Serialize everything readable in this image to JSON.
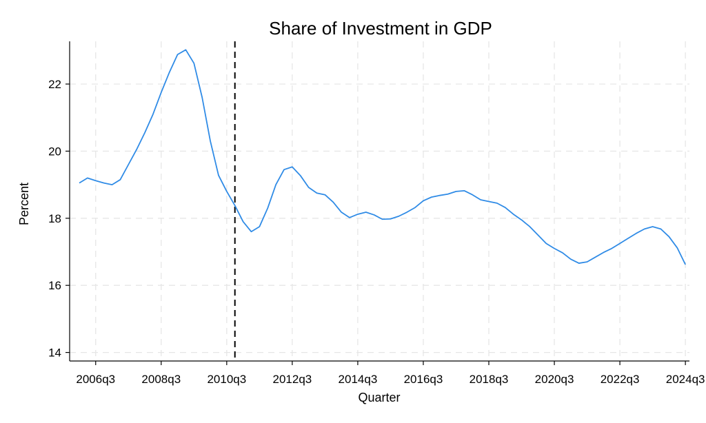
{
  "chart_data": {
    "type": "line",
    "title": "Share of Investment in GDP",
    "xlabel": "Quarter",
    "ylabel": "Percent",
    "x_start": "2006q1",
    "x_end": "2024q4",
    "ylim": [
      13.8,
      23.3
    ],
    "yticks": [
      14,
      16,
      18,
      20,
      22
    ],
    "xticks": [
      "2006q3",
      "2008q3",
      "2010q3",
      "2012q3",
      "2014q3",
      "2016q3",
      "2018q3",
      "2020q3",
      "2022q3",
      "2024q3"
    ],
    "grid": true,
    "vline": "2010q4",
    "line_color": "#2f8be6",
    "vline_color": "#000000",
    "series": [
      {
        "x": [
          "2006q1",
          "2006q2",
          "2006q3",
          "2006q4",
          "2007q1",
          "2007q2",
          "2007q3",
          "2007q4",
          "2008q1",
          "2008q2",
          "2008q3",
          "2008q4",
          "2009q1",
          "2009q2",
          "2009q3",
          "2009q4",
          "2010q1",
          "2010q2",
          "2010q3",
          "2010q4",
          "2011q1",
          "2011q2",
          "2011q3",
          "2011q4",
          "2012q1",
          "2012q2",
          "2012q3",
          "2012q4",
          "2013q1",
          "2013q2",
          "2013q3",
          "2013q4",
          "2014q1",
          "2014q2",
          "2014q3",
          "2014q4",
          "2015q1",
          "2015q2",
          "2015q3",
          "2015q4",
          "2016q1",
          "2016q2",
          "2016q3",
          "2016q4",
          "2017q1",
          "2017q2",
          "2017q3",
          "2017q4",
          "2018q1",
          "2018q2",
          "2018q3",
          "2018q4",
          "2019q1",
          "2019q2",
          "2019q3",
          "2019q4",
          "2020q1",
          "2020q2",
          "2020q3",
          "2020q4",
          "2021q1",
          "2021q2",
          "2021q3",
          "2021q4",
          "2022q1",
          "2022q2",
          "2022q3",
          "2022q4",
          "2023q1",
          "2023q2",
          "2023q3",
          "2023q4",
          "2024q1",
          "2024q2",
          "2024q3",
          "2024q4"
        ],
        "values": [
          19.05,
          19.2,
          19.12,
          19.05,
          19.0,
          19.15,
          19.6,
          20.05,
          20.55,
          21.1,
          21.75,
          22.35,
          22.88,
          23.02,
          22.62,
          21.6,
          20.3,
          19.28,
          18.8,
          18.38,
          17.9,
          17.6,
          17.75,
          18.3,
          19.0,
          19.45,
          19.53,
          19.27,
          18.92,
          18.75,
          18.7,
          18.48,
          18.18,
          18.02,
          18.12,
          18.18,
          18.1,
          17.97,
          17.98,
          18.06,
          18.18,
          18.32,
          18.52,
          18.63,
          18.68,
          18.72,
          18.8,
          18.82,
          18.7,
          18.55,
          18.5,
          18.45,
          18.32,
          18.12,
          17.95,
          17.75,
          17.5,
          17.25,
          17.1,
          16.97,
          16.78,
          16.66,
          16.7,
          16.84,
          16.98,
          17.1,
          17.25,
          17.4,
          17.55,
          17.68,
          17.75,
          17.68,
          17.45,
          17.12,
          16.62,
          null
        ]
      }
    ]
  }
}
